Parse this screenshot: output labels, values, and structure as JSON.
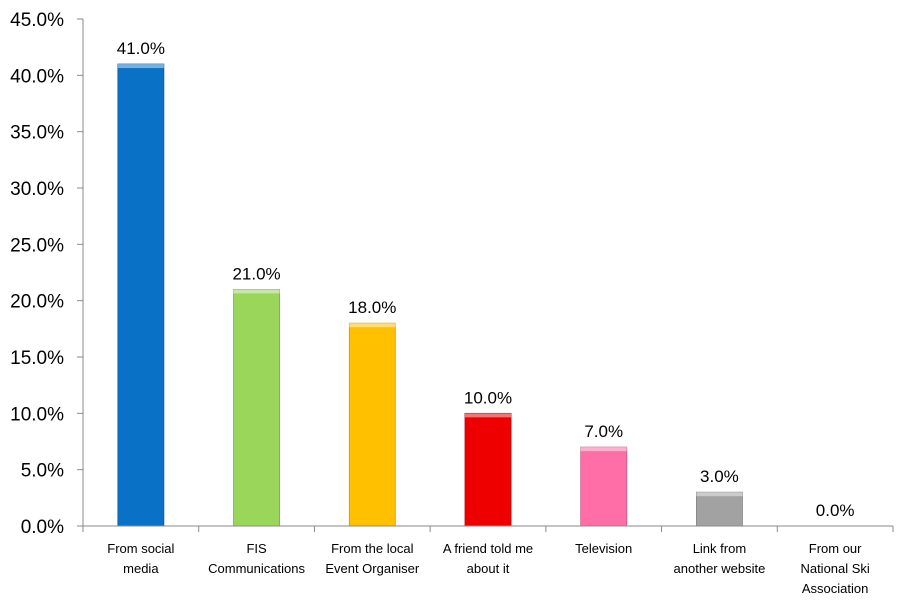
{
  "chart_data": {
    "type": "bar",
    "title": "",
    "xlabel": "",
    "ylabel": "",
    "ylim": [
      0,
      45
    ],
    "yticks": [
      "0.0%",
      "5.0%",
      "10.0%",
      "15.0%",
      "20.0%",
      "25.0%",
      "30.0%",
      "35.0%",
      "40.0%",
      "45.0%"
    ],
    "grid": false,
    "legend": "none",
    "categories": [
      [
        "From social",
        "media"
      ],
      [
        "FIS",
        "Communications"
      ],
      [
        "From the local",
        "Event Organiser"
      ],
      [
        "A friend told me",
        "about it"
      ],
      [
        "Television"
      ],
      [
        "Link from",
        "another website"
      ],
      [
        "From our",
        "National Ski",
        "Association"
      ]
    ],
    "values": [
      41.0,
      21.0,
      18.0,
      10.0,
      7.0,
      3.0,
      0.0
    ],
    "data_labels": [
      "41.0%",
      "21.0%",
      "18.0%",
      "10.0%",
      "7.0%",
      "3.0%",
      "0.0%"
    ],
    "colors": [
      "#0a72c6",
      "#99d659",
      "#ffc000",
      "#ef0000",
      "#ff6ea6",
      "#a2a2a2",
      "#cccccc"
    ]
  }
}
